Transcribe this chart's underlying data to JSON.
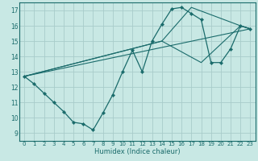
{
  "xlabel": "Humidex (Indice chaleur)",
  "xlim": [
    -0.5,
    23.5
  ],
  "ylim": [
    8.5,
    17.5
  ],
  "xticks": [
    0,
    1,
    2,
    3,
    4,
    5,
    6,
    7,
    8,
    9,
    10,
    11,
    12,
    13,
    14,
    15,
    16,
    17,
    18,
    19,
    20,
    21,
    22,
    23
  ],
  "yticks": [
    9,
    10,
    11,
    12,
    13,
    14,
    15,
    16,
    17
  ],
  "background_color": "#c8e8e4",
  "grid_color": "#a8ccca",
  "line_color": "#1a6b6b",
  "series_main": {
    "x": [
      0,
      1,
      2,
      3,
      4,
      5,
      6,
      7,
      8,
      9,
      10,
      11,
      12,
      13,
      14,
      15,
      16,
      17,
      18,
      19,
      20,
      21,
      22,
      23
    ],
    "y": [
      12.7,
      12.2,
      11.6,
      11.0,
      10.4,
      9.7,
      9.6,
      9.2,
      10.3,
      11.5,
      13.0,
      14.4,
      13.0,
      15.0,
      16.1,
      17.1,
      17.2,
      16.8,
      16.4,
      13.6,
      13.6,
      14.5,
      16.0,
      15.8
    ]
  },
  "series_lines": [
    {
      "x": [
        0,
        23
      ],
      "y": [
        12.7,
        15.8
      ]
    },
    {
      "x": [
        0,
        14,
        17,
        22,
        23
      ],
      "y": [
        12.7,
        15.0,
        17.2,
        16.0,
        15.8
      ]
    },
    {
      "x": [
        0,
        14,
        18,
        22,
        23
      ],
      "y": [
        12.7,
        15.0,
        13.6,
        16.0,
        15.8
      ]
    }
  ]
}
